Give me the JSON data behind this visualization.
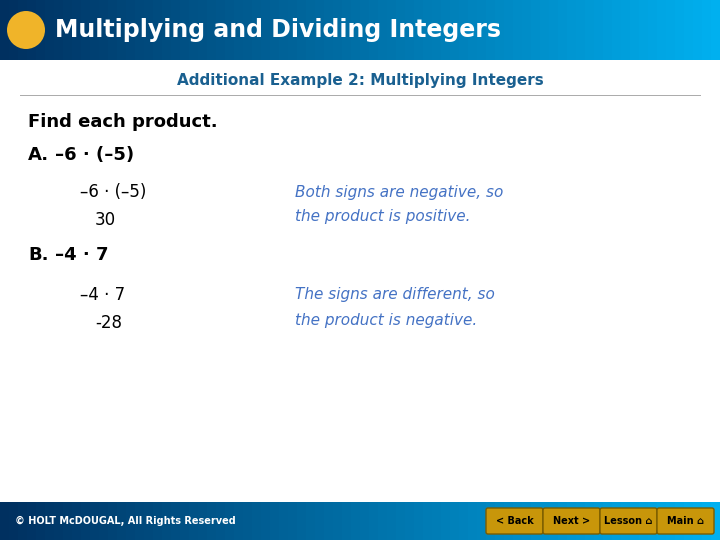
{
  "title": "Multiplying and Dividing Integers",
  "subtitle": "Additional Example 2: Multiplying Integers",
  "main_instruction": "Find each product.",
  "section_a_label": "A.",
  "section_a_problem": "–6 · (–5)",
  "section_a_step1": "–6 · (–5)",
  "section_a_answer": "30",
  "section_a_note_line1": "Both signs are negative, so",
  "section_a_note_line2": "the product is positive.",
  "section_b_label": "B.",
  "section_b_problem": "–4 · 7",
  "section_b_step1": "–4 · 7",
  "section_b_answer": "-28",
  "section_b_note_line1": "The signs are different, so",
  "section_b_note_line2": "the product is negative.",
  "footer_text": "© HOLT McDOUGAL, All Rights Reserved",
  "header_text_color": "#ffffff",
  "subtitle_color": "#1a6090",
  "main_text_color": "#000000",
  "note_text_color": "#4472c4",
  "footer_text_color": "#ffffff",
  "circle_color": "#f0b429",
  "bg_color": "#ffffff",
  "button_color": "#c8960a",
  "button_text_color": "#000000",
  "button_labels": [
    "< Back",
    "Next >",
    "Lesson ⌂",
    "Main ⌂"
  ]
}
